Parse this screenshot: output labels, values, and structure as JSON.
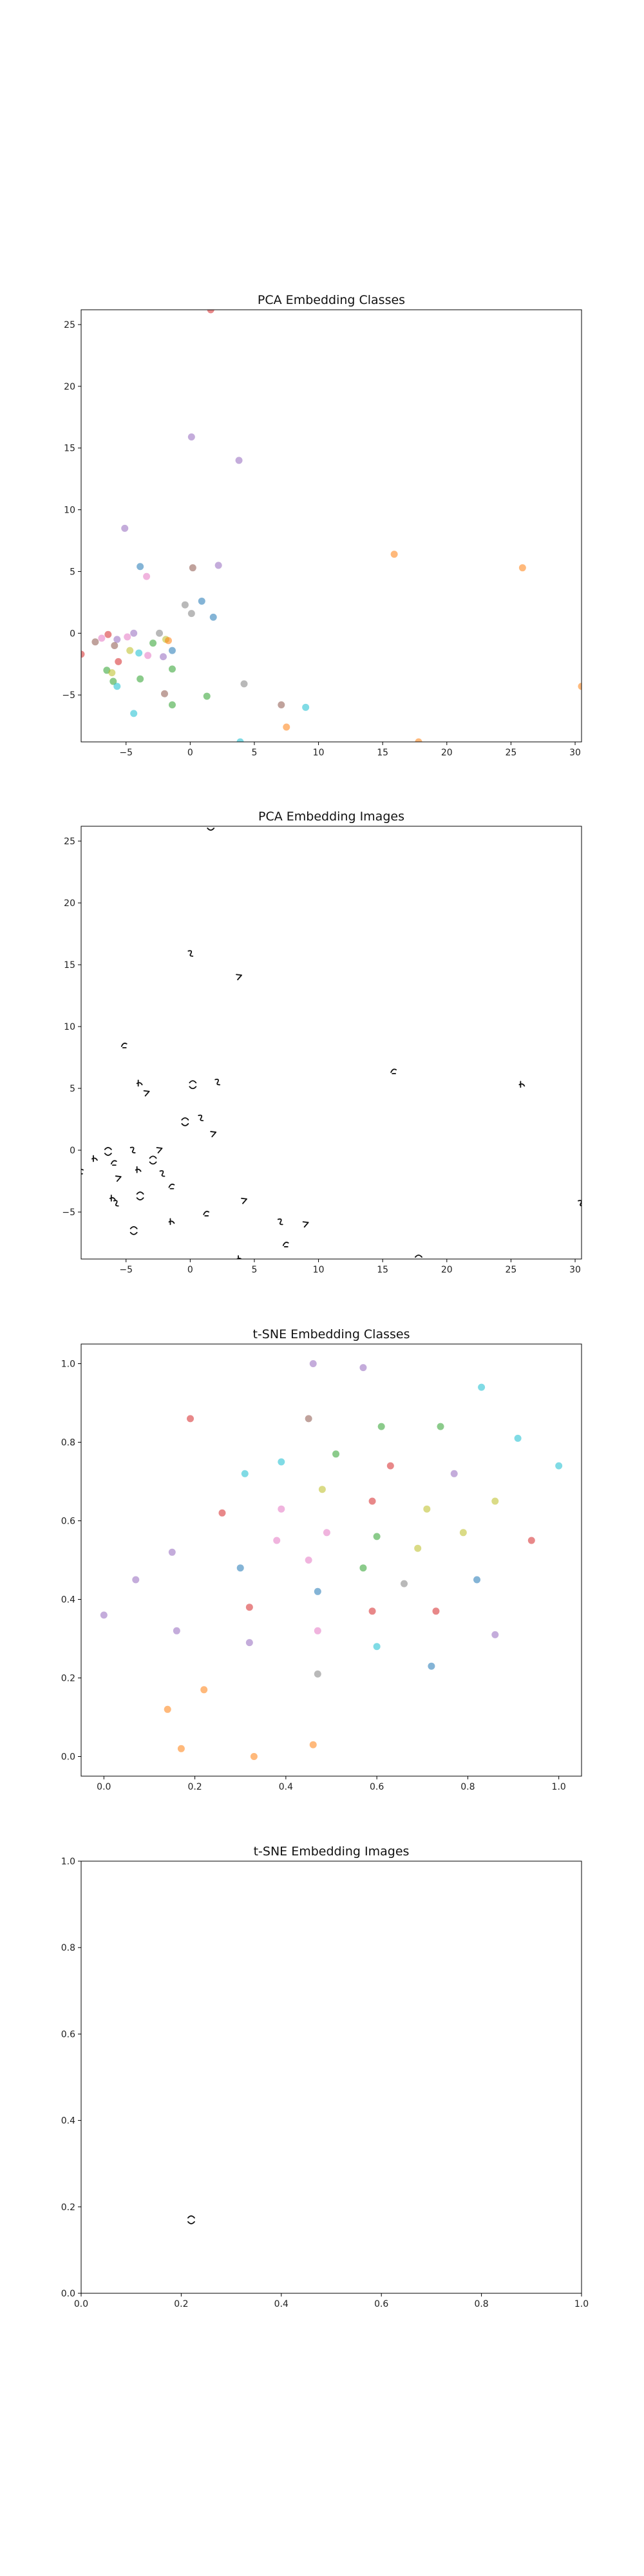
{
  "charts": [
    {
      "title": "PCA Embedding Classes",
      "chart_data": {
        "type": "scatter",
        "title": "PCA Embedding Classes",
        "xlim": [
          -8.5,
          30.5
        ],
        "ylim": [
          -8.8,
          26.2
        ],
        "xticks": [
          -5,
          0,
          5,
          10,
          15,
          20,
          25,
          30
        ],
        "yticks": [
          -5,
          0,
          5,
          10,
          15,
          20,
          25
        ],
        "xtick_labels": [
          "−5",
          "0",
          "5",
          "10",
          "15",
          "20",
          "25",
          "30"
        ],
        "ytick_labels": [
          "−5",
          "0",
          "5",
          "10",
          "15",
          "20",
          "25"
        ],
        "marker": "circle",
        "grid": false,
        "points": [
          {
            "x": 1.6,
            "y": 26.2,
            "color": "#d62728"
          },
          {
            "x": 0.1,
            "y": 15.9,
            "color": "#9467bd"
          },
          {
            "x": 3.8,
            "y": 14.0,
            "color": "#9467bd"
          },
          {
            "x": -5.1,
            "y": 8.5,
            "color": "#9467bd"
          },
          {
            "x": -3.9,
            "y": 5.4,
            "color": "#1f77b4"
          },
          {
            "x": 0.2,
            "y": 5.3,
            "color": "#8c564b"
          },
          {
            "x": 2.2,
            "y": 5.5,
            "color": "#9467bd"
          },
          {
            "x": -3.4,
            "y": 4.6,
            "color": "#e377c2"
          },
          {
            "x": 15.9,
            "y": 6.4,
            "color": "#ff7f0e"
          },
          {
            "x": 25.9,
            "y": 5.3,
            "color": "#ff7f0e"
          },
          {
            "x": -0.4,
            "y": 2.3,
            "color": "#7f7f7f"
          },
          {
            "x": 0.9,
            "y": 2.6,
            "color": "#1f77b4"
          },
          {
            "x": 0.1,
            "y": 1.6,
            "color": "#7f7f7f"
          },
          {
            "x": 1.8,
            "y": 1.3,
            "color": "#1f77b4"
          },
          {
            "x": -8.5,
            "y": -1.7,
            "color": "#d62728"
          },
          {
            "x": -7.4,
            "y": -0.7,
            "color": "#8c564b"
          },
          {
            "x": -6.9,
            "y": -0.4,
            "color": "#e377c2"
          },
          {
            "x": -6.4,
            "y": -0.1,
            "color": "#d62728"
          },
          {
            "x": -5.7,
            "y": -0.5,
            "color": "#9467bd"
          },
          {
            "x": -4.9,
            "y": -0.3,
            "color": "#e377c2"
          },
          {
            "x": -4.4,
            "y": 0.0,
            "color": "#9467bd"
          },
          {
            "x": -2.4,
            "y": 0.0,
            "color": "#7f7f7f"
          },
          {
            "x": -1.9,
            "y": -0.5,
            "color": "#bcbd22"
          },
          {
            "x": -1.7,
            "y": -0.6,
            "color": "#ff7f0e"
          },
          {
            "x": -5.9,
            "y": -1.0,
            "color": "#8c564b"
          },
          {
            "x": -4.7,
            "y": -1.4,
            "color": "#bcbd22"
          },
          {
            "x": -4.0,
            "y": -1.6,
            "color": "#17becf"
          },
          {
            "x": -3.3,
            "y": -1.8,
            "color": "#e377c2"
          },
          {
            "x": -2.9,
            "y": -0.8,
            "color": "#2ca02c"
          },
          {
            "x": -2.1,
            "y": -1.9,
            "color": "#9467bd"
          },
          {
            "x": -1.4,
            "y": -1.4,
            "color": "#1f77b4"
          },
          {
            "x": -5.6,
            "y": -2.3,
            "color": "#d62728"
          },
          {
            "x": -6.5,
            "y": -3.0,
            "color": "#2ca02c"
          },
          {
            "x": -6.1,
            "y": -3.2,
            "color": "#bcbd22"
          },
          {
            "x": -1.4,
            "y": -2.9,
            "color": "#2ca02c"
          },
          {
            "x": -6.0,
            "y": -3.9,
            "color": "#2ca02c"
          },
          {
            "x": -5.7,
            "y": -4.3,
            "color": "#17becf"
          },
          {
            "x": -3.9,
            "y": -3.7,
            "color": "#2ca02c"
          },
          {
            "x": -2.0,
            "y": -4.9,
            "color": "#8c564b"
          },
          {
            "x": 4.2,
            "y": -4.1,
            "color": "#7f7f7f"
          },
          {
            "x": 1.3,
            "y": -5.1,
            "color": "#2ca02c"
          },
          {
            "x": -1.4,
            "y": -5.8,
            "color": "#2ca02c"
          },
          {
            "x": -4.4,
            "y": -6.5,
            "color": "#17becf"
          },
          {
            "x": 7.1,
            "y": -5.8,
            "color": "#8c564b"
          },
          {
            "x": 9.0,
            "y": -6.0,
            "color": "#17becf"
          },
          {
            "x": 7.5,
            "y": -7.6,
            "color": "#ff7f0e"
          },
          {
            "x": 3.9,
            "y": -8.8,
            "color": "#17becf"
          },
          {
            "x": 17.8,
            "y": -8.8,
            "color": "#ff7f0e"
          },
          {
            "x": 30.5,
            "y": -4.3,
            "color": "#ff7f0e"
          }
        ]
      }
    },
    {
      "title": "PCA Embedding Images",
      "chart_data": {
        "type": "scatter",
        "title": "PCA Embedding Images",
        "xlim": [
          -8.5,
          30.5
        ],
        "ylim": [
          -8.8,
          26.2
        ],
        "xticks": [
          -5,
          0,
          5,
          10,
          15,
          20,
          25,
          30
        ],
        "yticks": [
          -5,
          0,
          5,
          10,
          15,
          20,
          25
        ],
        "xtick_labels": [
          "−5",
          "0",
          "5",
          "10",
          "15",
          "20",
          "25",
          "30"
        ],
        "ytick_labels": [
          "−5",
          "0",
          "5",
          "10",
          "15",
          "20",
          "25"
        ],
        "marker": "digit-image",
        "grid": false,
        "points": [
          {
            "x": 1.6,
            "y": 26.2
          },
          {
            "x": 0.1,
            "y": 15.9
          },
          {
            "x": 3.8,
            "y": 14.0
          },
          {
            "x": -5.1,
            "y": 8.5
          },
          {
            "x": -3.9,
            "y": 5.4
          },
          {
            "x": 0.2,
            "y": 5.3
          },
          {
            "x": 2.2,
            "y": 5.5
          },
          {
            "x": -3.4,
            "y": 4.6
          },
          {
            "x": 15.9,
            "y": 6.4
          },
          {
            "x": 25.9,
            "y": 5.3
          },
          {
            "x": -0.4,
            "y": 2.3
          },
          {
            "x": 0.9,
            "y": 2.6
          },
          {
            "x": 1.8,
            "y": 1.3
          },
          {
            "x": -8.5,
            "y": -1.7
          },
          {
            "x": -7.4,
            "y": -0.7
          },
          {
            "x": -6.4,
            "y": -0.1
          },
          {
            "x": -4.4,
            "y": 0.0
          },
          {
            "x": -2.4,
            "y": 0.0
          },
          {
            "x": -5.9,
            "y": -1.0
          },
          {
            "x": -4.0,
            "y": -1.6
          },
          {
            "x": -2.9,
            "y": -0.8
          },
          {
            "x": -2.1,
            "y": -1.9
          },
          {
            "x": -5.6,
            "y": -2.3
          },
          {
            "x": -1.4,
            "y": -2.9
          },
          {
            "x": -6.0,
            "y": -3.9
          },
          {
            "x": -3.9,
            "y": -3.7
          },
          {
            "x": -5.7,
            "y": -4.3
          },
          {
            "x": 4.2,
            "y": -4.1
          },
          {
            "x": 1.3,
            "y": -5.1
          },
          {
            "x": -1.4,
            "y": -5.8
          },
          {
            "x": -4.4,
            "y": -6.5
          },
          {
            "x": 7.1,
            "y": -5.8
          },
          {
            "x": 9.0,
            "y": -6.0
          },
          {
            "x": 7.5,
            "y": -7.6
          },
          {
            "x": 3.9,
            "y": -8.8
          },
          {
            "x": 17.8,
            "y": -8.8
          },
          {
            "x": 30.5,
            "y": -4.3
          }
        ]
      }
    },
    {
      "title": "t-SNE Embedding Classes",
      "chart_data": {
        "type": "scatter",
        "title": "t-SNE Embedding Classes",
        "xlim": [
          -0.05,
          1.05
        ],
        "ylim": [
          -0.05,
          1.05
        ],
        "xticks": [
          0.0,
          0.2,
          0.4,
          0.6,
          0.8,
          1.0
        ],
        "yticks": [
          0.0,
          0.2,
          0.4,
          0.6,
          0.8,
          1.0
        ],
        "xtick_labels": [
          "0.0",
          "0.2",
          "0.4",
          "0.6",
          "0.8",
          "1.0"
        ],
        "ytick_labels": [
          "0.0",
          "0.2",
          "0.4",
          "0.6",
          "0.8",
          "1.0"
        ],
        "marker": "circle",
        "grid": false,
        "points": [
          {
            "x": 0.46,
            "y": 1.0,
            "color": "#9467bd"
          },
          {
            "x": 0.57,
            "y": 0.99,
            "color": "#9467bd"
          },
          {
            "x": 0.83,
            "y": 0.94,
            "color": "#17becf"
          },
          {
            "x": 0.19,
            "y": 0.86,
            "color": "#d62728"
          },
          {
            "x": 0.45,
            "y": 0.86,
            "color": "#8c564b"
          },
          {
            "x": 0.61,
            "y": 0.84,
            "color": "#2ca02c"
          },
          {
            "x": 0.74,
            "y": 0.84,
            "color": "#2ca02c"
          },
          {
            "x": 0.91,
            "y": 0.81,
            "color": "#17becf"
          },
          {
            "x": 0.51,
            "y": 0.77,
            "color": "#2ca02c"
          },
          {
            "x": 0.39,
            "y": 0.75,
            "color": "#17becf"
          },
          {
            "x": 1.0,
            "y": 0.74,
            "color": "#17becf"
          },
          {
            "x": 0.63,
            "y": 0.74,
            "color": "#d62728"
          },
          {
            "x": 0.31,
            "y": 0.72,
            "color": "#17becf"
          },
          {
            "x": 0.77,
            "y": 0.72,
            "color": "#9467bd"
          },
          {
            "x": 0.48,
            "y": 0.68,
            "color": "#bcbd22"
          },
          {
            "x": 0.59,
            "y": 0.65,
            "color": "#d62728"
          },
          {
            "x": 0.86,
            "y": 0.65,
            "color": "#bcbd22"
          },
          {
            "x": 0.39,
            "y": 0.63,
            "color": "#e377c2"
          },
          {
            "x": 0.71,
            "y": 0.63,
            "color": "#bcbd22"
          },
          {
            "x": 0.26,
            "y": 0.62,
            "color": "#d62728"
          },
          {
            "x": 0.49,
            "y": 0.57,
            "color": "#e377c2"
          },
          {
            "x": 0.79,
            "y": 0.57,
            "color": "#bcbd22"
          },
          {
            "x": 0.6,
            "y": 0.56,
            "color": "#2ca02c"
          },
          {
            "x": 0.94,
            "y": 0.55,
            "color": "#d62728"
          },
          {
            "x": 0.38,
            "y": 0.55,
            "color": "#e377c2"
          },
          {
            "x": 0.69,
            "y": 0.53,
            "color": "#bcbd22"
          },
          {
            "x": 0.15,
            "y": 0.52,
            "color": "#9467bd"
          },
          {
            "x": 0.45,
            "y": 0.5,
            "color": "#e377c2"
          },
          {
            "x": 0.3,
            "y": 0.48,
            "color": "#1f77b4"
          },
          {
            "x": 0.57,
            "y": 0.48,
            "color": "#2ca02c"
          },
          {
            "x": 0.07,
            "y": 0.45,
            "color": "#9467bd"
          },
          {
            "x": 0.82,
            "y": 0.45,
            "color": "#1f77b4"
          },
          {
            "x": 0.66,
            "y": 0.44,
            "color": "#7f7f7f"
          },
          {
            "x": 0.47,
            "y": 0.42,
            "color": "#1f77b4"
          },
          {
            "x": 0.32,
            "y": 0.38,
            "color": "#d62728"
          },
          {
            "x": 0.59,
            "y": 0.37,
            "color": "#d62728"
          },
          {
            "x": 0.73,
            "y": 0.37,
            "color": "#d62728"
          },
          {
            "x": 0.0,
            "y": 0.36,
            "color": "#9467bd"
          },
          {
            "x": 0.16,
            "y": 0.32,
            "color": "#9467bd"
          },
          {
            "x": 0.47,
            "y": 0.32,
            "color": "#e377c2"
          },
          {
            "x": 0.86,
            "y": 0.31,
            "color": "#9467bd"
          },
          {
            "x": 0.32,
            "y": 0.29,
            "color": "#9467bd"
          },
          {
            "x": 0.6,
            "y": 0.28,
            "color": "#17becf"
          },
          {
            "x": 0.72,
            "y": 0.23,
            "color": "#1f77b4"
          },
          {
            "x": 0.47,
            "y": 0.21,
            "color": "#7f7f7f"
          },
          {
            "x": 0.22,
            "y": 0.17,
            "color": "#ff7f0e"
          },
          {
            "x": 0.14,
            "y": 0.12,
            "color": "#ff7f0e"
          },
          {
            "x": 0.17,
            "y": 0.02,
            "color": "#ff7f0e"
          },
          {
            "x": 0.46,
            "y": 0.03,
            "color": "#ff7f0e"
          },
          {
            "x": 0.33,
            "y": 0.0,
            "color": "#ff7f0e"
          }
        ]
      }
    },
    {
      "title": "t-SNE Embedding Images",
      "chart_data": {
        "type": "scatter",
        "title": "t-SNE Embedding Images",
        "xlim": [
          0.0,
          1.0
        ],
        "ylim": [
          0.0,
          1.0
        ],
        "xticks": [
          0.0,
          0.2,
          0.4,
          0.6,
          0.8,
          1.0
        ],
        "yticks": [
          0.0,
          0.2,
          0.4,
          0.6,
          0.8,
          1.0
        ],
        "xtick_labels": [
          "0.0",
          "0.2",
          "0.4",
          "0.6",
          "0.8",
          "1.0"
        ],
        "ytick_labels": [
          "0.0",
          "0.2",
          "0.4",
          "0.6",
          "0.8",
          "1.0"
        ],
        "marker": "digit-image",
        "grid": false,
        "points": [
          {
            "x": 0.22,
            "y": 0.17
          }
        ]
      }
    }
  ]
}
